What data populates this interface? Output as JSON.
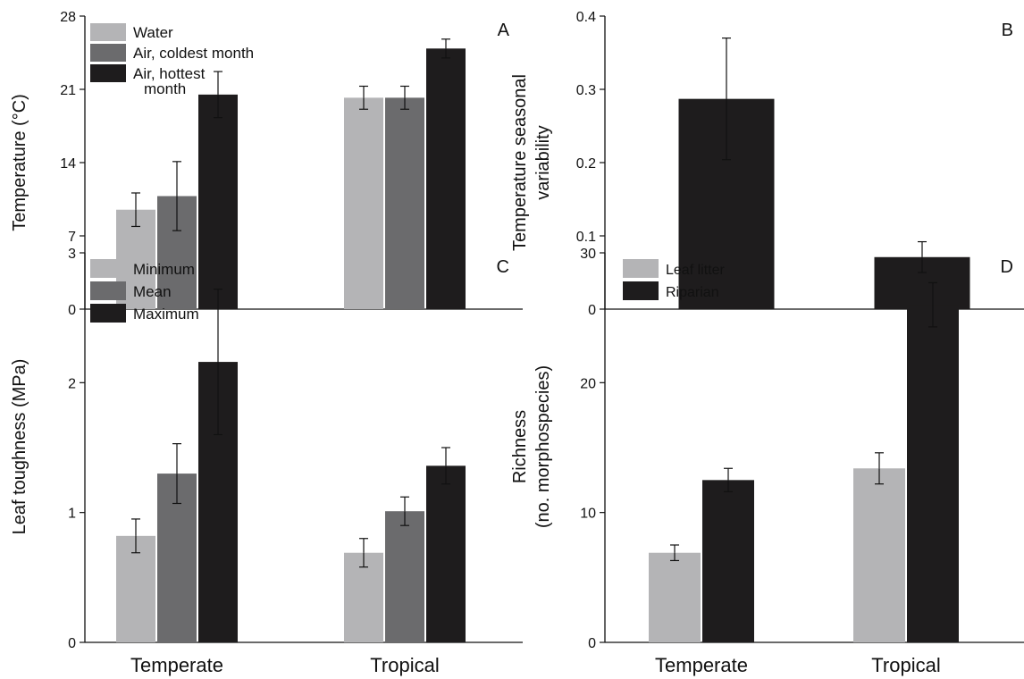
{
  "chart_data": [
    {
      "type": "bar",
      "panel_letter": "A",
      "ylabel": "Temperature (°C)",
      "xlabel": "",
      "ylim": [
        0,
        28
      ],
      "yticks": [
        "0",
        "7",
        "14",
        "21",
        "28"
      ],
      "categories": [
        "Temperate",
        "Tropical"
      ],
      "show_xlabels": false,
      "grid": false,
      "legend_position": "top-left",
      "series": [
        {
          "name": "Water",
          "color": "#b4b4b6",
          "values": [
            9.5,
            20.2
          ],
          "errors": [
            1.6,
            1.1
          ]
        },
        {
          "name": "Air, coldest month",
          "color": "#6b6b6d",
          "values": [
            10.8,
            20.2
          ],
          "errors": [
            3.3,
            1.1
          ]
        },
        {
          "name": "Air, hottest\nmonth",
          "color": "#1e1c1d",
          "values": [
            20.5,
            24.9
          ],
          "errors": [
            2.2,
            0.9
          ]
        }
      ]
    },
    {
      "type": "bar",
      "panel_letter": "B",
      "ylabel": "Temperature seasonal\nvariability",
      "xlabel": "",
      "ylim": [
        0,
        0.4
      ],
      "yticks": [
        "0",
        "0.1",
        "0.2",
        "0.3",
        "0.4"
      ],
      "categories": [
        "Temperate",
        "Tropical"
      ],
      "show_xlabels": false,
      "grid": false,
      "legend_position": "none",
      "series": [
        {
          "color": "#1e1c1d",
          "values": [
            0.287,
            0.071
          ],
          "errors": [
            0.083,
            0.021
          ]
        }
      ]
    },
    {
      "type": "bar",
      "panel_letter": "C",
      "ylabel": "Leaf toughness (MPa)",
      "xlabel": "",
      "ylim": [
        0,
        3
      ],
      "yticks": [
        "0",
        "1",
        "2",
        "3"
      ],
      "categories": [
        "Temperate",
        "Tropical"
      ],
      "show_xlabels": true,
      "grid": false,
      "legend_position": "top-left",
      "series": [
        {
          "name": "Minimum",
          "color": "#b4b4b6",
          "values": [
            0.82,
            0.69
          ],
          "errors": [
            0.13,
            0.11
          ]
        },
        {
          "name": "Mean",
          "color": "#6b6b6d",
          "values": [
            1.3,
            1.01
          ],
          "errors": [
            0.23,
            0.11
          ]
        },
        {
          "name": "Maximum",
          "color": "#1e1c1d",
          "values": [
            2.16,
            1.36
          ],
          "errors": [
            0.56,
            0.14
          ]
        }
      ]
    },
    {
      "type": "bar",
      "panel_letter": "D",
      "ylabel": "Richness\n(no. morphospecies)",
      "xlabel": "",
      "ylim": [
        0,
        30
      ],
      "yticks": [
        "0",
        "10",
        "20",
        "30"
      ],
      "categories": [
        "Temperate",
        "Tropical"
      ],
      "show_xlabels": true,
      "grid": false,
      "legend_position": "top-left",
      "series": [
        {
          "name": "Leaf litter",
          "color": "#b4b4b6",
          "values": [
            6.9,
            13.4
          ],
          "errors": [
            0.6,
            1.2
          ]
        },
        {
          "name": "Riparian",
          "color": "#1e1c1d",
          "values": [
            12.5,
            26.0
          ],
          "errors": [
            0.9,
            1.7
          ]
        }
      ]
    }
  ]
}
